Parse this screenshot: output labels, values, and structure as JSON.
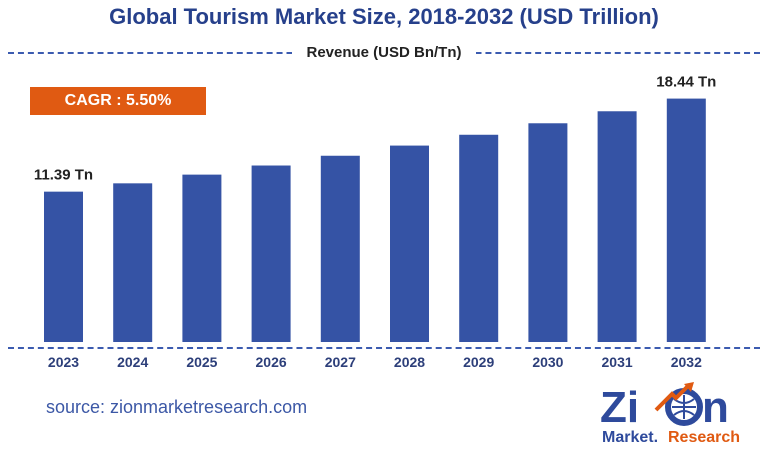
{
  "title": "Global Tourism Market Size, 2018-2032 (USD Trillion)",
  "series_label": "Revenue (USD Bn/Tn)",
  "cagr_label": "CAGR : 5.50%",
  "source": "source: zionmarketresearch.com",
  "logo": {
    "name": "Zion Market Research",
    "text_top": "Zion",
    "text_bottom": "Market.Research"
  },
  "colors": {
    "bar": "#3553a5",
    "title": "#26408b",
    "cagr_bg": "#e05a12",
    "axis_dash": "#3b5bb0"
  },
  "chart_data": {
    "type": "bar",
    "categories": [
      "2023",
      "2024",
      "2025",
      "2026",
      "2027",
      "2028",
      "2029",
      "2030",
      "2031",
      "2032"
    ],
    "values": [
      11.39,
      12.02,
      12.68,
      13.37,
      14.11,
      14.88,
      15.7,
      16.57,
      17.48,
      18.44
    ],
    "data_labels": [
      {
        "index": 0,
        "text": "11.39 Tn"
      },
      {
        "index": 9,
        "text": "18.44 Tn"
      }
    ],
    "ylim": [
      0,
      20
    ],
    "grid": false,
    "legend": "none"
  }
}
